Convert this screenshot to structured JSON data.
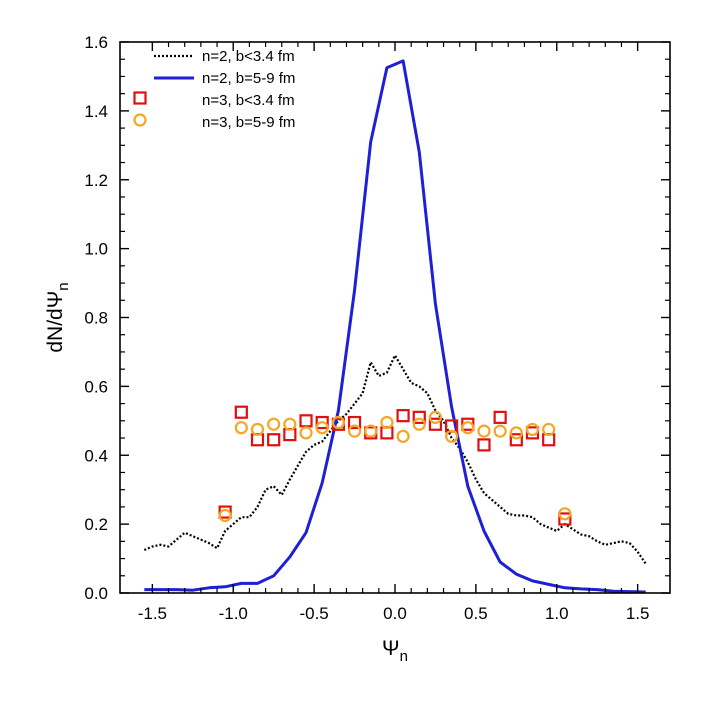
{
  "chart_data": {
    "type": "scatter",
    "xlabel": {
      "base": "Ψ",
      "sub": "n"
    },
    "ylabel": {
      "base": "dN/dΨ",
      "sub": "n"
    },
    "xlim": [
      -1.7,
      1.7
    ],
    "ylim": [
      0,
      1.6
    ],
    "xticks": [
      -1.5,
      -1.0,
      -0.5,
      0.0,
      0.5,
      1.0,
      1.5
    ],
    "xtick_labels": [
      "-1.5",
      "-1.0",
      "-0.5",
      "0.0",
      "0.5",
      "1.0",
      "1.5"
    ],
    "yticks": [
      0,
      0.2,
      0.4,
      0.6,
      0.8,
      1.0,
      1.2,
      1.4,
      1.6
    ],
    "ytick_labels": [
      "0.0",
      "0.2",
      "0.4",
      "0.6",
      "0.8",
      "1.0",
      "1.2",
      "1.4",
      "1.6"
    ],
    "grid": false,
    "legend_position": "top-left",
    "series": [
      {
        "name": "n=2, b<3.4 fm",
        "style": "dotted-line",
        "color": "#000000",
        "x": [
          -1.55,
          -1.5,
          -1.45,
          -1.4,
          -1.35,
          -1.3,
          -1.25,
          -1.2,
          -1.15,
          -1.1,
          -1.05,
          -1.0,
          -0.95,
          -0.9,
          -0.85,
          -0.8,
          -0.75,
          -0.7,
          -0.65,
          -0.6,
          -0.55,
          -0.5,
          -0.45,
          -0.4,
          -0.35,
          -0.3,
          -0.25,
          -0.2,
          -0.15,
          -0.1,
          -0.05,
          0.0,
          0.05,
          0.1,
          0.15,
          0.2,
          0.25,
          0.3,
          0.35,
          0.4,
          0.45,
          0.5,
          0.55,
          0.6,
          0.65,
          0.7,
          0.75,
          0.8,
          0.85,
          0.9,
          0.95,
          1.0,
          1.05,
          1.1,
          1.15,
          1.2,
          1.25,
          1.3,
          1.35,
          1.4,
          1.45,
          1.5,
          1.55
        ],
        "y": [
          0.125,
          0.135,
          0.14,
          0.135,
          0.155,
          0.175,
          0.165,
          0.155,
          0.145,
          0.13,
          0.18,
          0.2,
          0.22,
          0.22,
          0.25,
          0.3,
          0.31,
          0.285,
          0.33,
          0.37,
          0.41,
          0.43,
          0.44,
          0.47,
          0.5,
          0.52,
          0.55,
          0.58,
          0.67,
          0.63,
          0.64,
          0.69,
          0.65,
          0.61,
          0.6,
          0.58,
          0.53,
          0.5,
          0.45,
          0.42,
          0.38,
          0.33,
          0.29,
          0.27,
          0.25,
          0.23,
          0.225,
          0.225,
          0.22,
          0.2,
          0.19,
          0.18,
          0.2,
          0.185,
          0.17,
          0.165,
          0.15,
          0.14,
          0.145,
          0.15,
          0.145,
          0.12,
          0.085
        ]
      },
      {
        "name": "n=2, b=5-9 fm",
        "style": "solid-line",
        "color": "#1f1fd6",
        "x": [
          -1.55,
          -1.45,
          -1.35,
          -1.25,
          -1.15,
          -1.05,
          -0.95,
          -0.85,
          -0.75,
          -0.65,
          -0.55,
          -0.45,
          -0.35,
          -0.25,
          -0.15,
          -0.05,
          0.05,
          0.15,
          0.25,
          0.35,
          0.45,
          0.55,
          0.65,
          0.75,
          0.85,
          0.95,
          1.05,
          1.15,
          1.25,
          1.35,
          1.45,
          1.55
        ],
        "y": [
          0.01,
          0.01,
          0.01,
          0.008,
          0.015,
          0.018,
          0.028,
          0.028,
          0.05,
          0.105,
          0.175,
          0.32,
          0.53,
          0.88,
          1.31,
          1.525,
          1.545,
          1.28,
          0.84,
          0.54,
          0.31,
          0.18,
          0.09,
          0.055,
          0.035,
          0.025,
          0.015,
          0.012,
          0.01,
          0.005,
          0.004,
          0.003
        ]
      },
      {
        "name": "n=3, b<3.4 fm",
        "style": "open-square",
        "color": "#e01010",
        "x": [
          -1.05,
          -0.95,
          -0.85,
          -0.75,
          -0.65,
          -0.55,
          -0.45,
          -0.35,
          -0.25,
          -0.15,
          -0.05,
          0.05,
          0.15,
          0.25,
          0.35,
          0.45,
          0.55,
          0.65,
          0.75,
          0.85,
          0.95,
          1.05
        ],
        "y": [
          0.235,
          0.525,
          0.445,
          0.445,
          0.46,
          0.5,
          0.495,
          0.49,
          0.495,
          0.465,
          0.465,
          0.515,
          0.51,
          0.49,
          0.485,
          0.49,
          0.43,
          0.51,
          0.445,
          0.465,
          0.445,
          0.215
        ]
      },
      {
        "name": "n=3, b=5-9 fm",
        "style": "open-circle",
        "color": "#f5a623",
        "x": [
          -1.05,
          -0.95,
          -0.85,
          -0.75,
          -0.65,
          -0.55,
          -0.45,
          -0.35,
          -0.25,
          -0.15,
          -0.05,
          0.05,
          0.15,
          0.25,
          0.35,
          0.45,
          0.55,
          0.65,
          0.75,
          0.85,
          0.95,
          1.05
        ],
        "y": [
          0.225,
          0.48,
          0.475,
          0.49,
          0.49,
          0.465,
          0.48,
          0.495,
          0.47,
          0.47,
          0.495,
          0.455,
          0.49,
          0.51,
          0.455,
          0.48,
          0.47,
          0.47,
          0.465,
          0.475,
          0.475,
          0.23
        ]
      }
    ]
  }
}
